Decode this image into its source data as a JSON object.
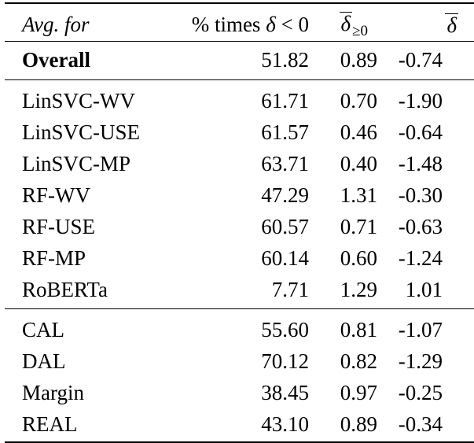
{
  "page": {
    "background": "#ffffff",
    "text_color": "#000000",
    "rule_color": "#000000"
  },
  "table": {
    "header": {
      "col1": "Avg. for",
      "col2_prefix": "% times ",
      "col2_delta": "δ",
      "col2_rel": " < 0",
      "col3_delta": "δ",
      "col3_sub": "≥0",
      "col4_delta": "δ"
    },
    "overall": {
      "label": "Overall",
      "pct": "51.82",
      "delta_pos": "0.89",
      "delta": "-0.74"
    },
    "sections": [
      {
        "rows": [
          {
            "label": "LinSVC-WV",
            "pct": "61.71",
            "delta_pos": "0.70",
            "delta": "-1.90"
          },
          {
            "label": "LinSVC-USE",
            "pct": "61.57",
            "delta_pos": "0.46",
            "delta": "-0.64"
          },
          {
            "label": "LinSVC-MP",
            "pct": "63.71",
            "delta_pos": "0.40",
            "delta": "-1.48"
          },
          {
            "label": "RF-WV",
            "pct": "47.29",
            "delta_pos": "1.31",
            "delta": "-0.30"
          },
          {
            "label": "RF-USE",
            "pct": "60.57",
            "delta_pos": "0.71",
            "delta": "-0.63"
          },
          {
            "label": "RF-MP",
            "pct": "60.14",
            "delta_pos": "0.60",
            "delta": "-1.24"
          },
          {
            "label": "RoBERTa",
            "pct": "7.71",
            "delta_pos": "1.29",
            "delta": "1.01"
          }
        ]
      },
      {
        "rows": [
          {
            "label": "CAL",
            "pct": "55.60",
            "delta_pos": "0.81",
            "delta": "-1.07"
          },
          {
            "label": "DAL",
            "pct": "70.12",
            "delta_pos": "0.82",
            "delta": "-1.29"
          },
          {
            "label": "Margin",
            "pct": "38.45",
            "delta_pos": "0.97",
            "delta": "-0.25"
          },
          {
            "label": "REAL",
            "pct": "43.10",
            "delta_pos": "0.89",
            "delta": "-0.34"
          }
        ]
      }
    ]
  },
  "chart_data": {
    "type": "table",
    "columns": [
      "Avg. for",
      "% times δ < 0",
      "δ̄_≥0",
      "δ̄"
    ],
    "rows": [
      [
        "Overall",
        51.82,
        0.89,
        -0.74
      ],
      [
        "LinSVC-WV",
        61.71,
        0.7,
        -1.9
      ],
      [
        "LinSVC-USE",
        61.57,
        0.46,
        -0.64
      ],
      [
        "LinSVC-MP",
        63.71,
        0.4,
        -1.48
      ],
      [
        "RF-WV",
        47.29,
        1.31,
        -0.3
      ],
      [
        "RF-USE",
        60.57,
        0.71,
        -0.63
      ],
      [
        "RF-MP",
        60.14,
        0.6,
        -1.24
      ],
      [
        "RoBERTa",
        7.71,
        1.29,
        1.01
      ],
      [
        "CAL",
        55.6,
        0.81,
        -1.07
      ],
      [
        "DAL",
        70.12,
        0.82,
        -1.29
      ],
      [
        "Margin",
        38.45,
        0.97,
        -0.25
      ],
      [
        "REAL",
        43.1,
        0.89,
        -0.34
      ]
    ]
  }
}
